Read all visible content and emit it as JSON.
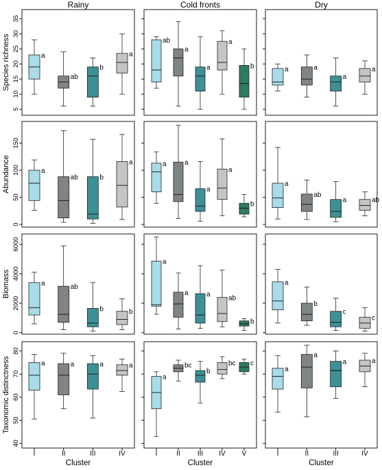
{
  "colors": {
    "I": "#a9dbe8",
    "II": "#7f8584",
    "III": "#3d9095",
    "IV": "#c5c5c5",
    "V": "#2e7d5e"
  },
  "chart_data": {
    "type": "box",
    "columns": [
      "Rainy",
      "Cold fronts",
      "Dry"
    ],
    "xlabel": "Cluster",
    "rows": [
      {
        "ylabel": "Species richness",
        "ylim": [
          3,
          38
        ],
        "yticks": [
          5,
          10,
          15,
          20,
          25,
          30,
          35
        ],
        "panels": [
          {
            "season": "Rainy",
            "groups": [
              {
                "cluster": "I",
                "min": 10,
                "q1": 15,
                "median": 19,
                "q3": 23,
                "max": 28,
                "letter": "a"
              },
              {
                "cluster": "II",
                "min": 6,
                "q1": 12,
                "median": 14,
                "q3": 16,
                "max": 24,
                "letter": "ab"
              },
              {
                "cluster": "III",
                "min": 6,
                "q1": 9,
                "median": 16,
                "q3": 19,
                "max": 22,
                "letter": "b"
              },
              {
                "cluster": "IV",
                "min": 10,
                "q1": 17,
                "median": 20.5,
                "q3": 23.5,
                "max": 30,
                "letter": "a"
              }
            ]
          },
          {
            "season": "Cold fronts",
            "groups": [
              {
                "cluster": "I",
                "min": 12,
                "q1": 14,
                "median": 18,
                "q3": 28,
                "max": 29,
                "letter": "ab"
              },
              {
                "cluster": "II",
                "min": 6,
                "q1": 16,
                "median": 22,
                "q3": 25,
                "max": 34,
                "letter": "a"
              },
              {
                "cluster": "III",
                "min": 5,
                "q1": 11,
                "median": 16,
                "q3": 19,
                "max": 29,
                "letter": "a"
              },
              {
                "cluster": "IV",
                "min": 10,
                "q1": 18,
                "median": 20.5,
                "q3": 27.5,
                "max": 31,
                "letter": "a"
              },
              {
                "cluster": "V",
                "min": 5,
                "q1": 9,
                "median": 13.5,
                "q3": 19.5,
                "max": 25,
                "letter": "b"
              }
            ]
          },
          {
            "season": "Dry",
            "groups": [
              {
                "cluster": "I",
                "min": 11,
                "q1": 13,
                "median": 14,
                "q3": 18.5,
                "max": 20,
                "letter": "a"
              },
              {
                "cluster": "II",
                "min": 9,
                "q1": 13,
                "median": 15,
                "q3": 19,
                "max": 23,
                "letter": "a"
              },
              {
                "cluster": "III",
                "min": 6,
                "q1": 11,
                "median": 14,
                "q3": 16,
                "max": 22,
                "letter": "a"
              },
              {
                "cluster": "IV",
                "min": 10,
                "q1": 14,
                "median": 16,
                "q3": 18.5,
                "max": 21,
                "letter": "a"
              }
            ]
          }
        ]
      },
      {
        "ylabel": "Abundance",
        "ylim": [
          -5,
          190
        ],
        "yticks": [
          0,
          50,
          100,
          150
        ],
        "panels": [
          {
            "season": "Rainy",
            "groups": [
              {
                "cluster": "I",
                "min": 26,
                "q1": 44,
                "median": 76,
                "q3": 100,
                "max": 119,
                "letter": "a"
              },
              {
                "cluster": "II",
                "min": 4,
                "q1": 12,
                "median": 44,
                "q3": 88,
                "max": 173,
                "letter": "ab"
              },
              {
                "cluster": "III",
                "min": 2,
                "q1": 10,
                "median": 19,
                "q3": 88,
                "max": 157,
                "letter": "b"
              },
              {
                "cluster": "IV",
                "min": 9,
                "q1": 32,
                "median": 72,
                "q3": 116,
                "max": 166,
                "letter": "a"
              }
            ]
          },
          {
            "season": "Cold fronts",
            "groups": [
              {
                "cluster": "I",
                "min": 39,
                "q1": 60,
                "median": 97,
                "q3": 113,
                "max": 134,
                "letter": "a"
              },
              {
                "cluster": "II",
                "min": 11,
                "q1": 42,
                "median": 55,
                "q3": 115,
                "max": 183,
                "letter": "a"
              },
              {
                "cluster": "III",
                "min": 6,
                "q1": 24,
                "median": 34,
                "q3": 66,
                "max": 116,
                "letter": "a"
              },
              {
                "cluster": "IV",
                "min": 16,
                "q1": 46,
                "median": 67,
                "q3": 102,
                "max": 158,
                "letter": "a"
              },
              {
                "cluster": "V",
                "min": 14,
                "q1": 19,
                "median": 30,
                "q3": 39,
                "max": 55,
                "letter": "b"
              }
            ]
          },
          {
            "season": "Dry",
            "groups": [
              {
                "cluster": "I",
                "min": 10,
                "q1": 31,
                "median": 49,
                "q3": 76,
                "max": 142,
                "letter": "a"
              },
              {
                "cluster": "II",
                "min": 9,
                "q1": 24,
                "median": 37,
                "q3": 56,
                "max": 82,
                "letter": "ab"
              },
              {
                "cluster": "III",
                "min": 5,
                "q1": 13,
                "median": 24,
                "q3": 46,
                "max": 79,
                "letter": "a"
              },
              {
                "cluster": "IV",
                "min": 16,
                "q1": 26,
                "median": 35,
                "q3": 46,
                "max": 60,
                "letter": "ab"
              }
            ]
          }
        ]
      },
      {
        "ylabel": "Biomass",
        "ylim": [
          -100,
          6700
        ],
        "yticks": [
          0,
          2000,
          4000,
          6000
        ],
        "panels": [
          {
            "season": "Rainy",
            "groups": [
              {
                "cluster": "I",
                "min": 600,
                "q1": 1200,
                "median": 1700,
                "q3": 3400,
                "max": 4100,
                "letter": "a"
              },
              {
                "cluster": "II",
                "min": 200,
                "q1": 700,
                "median": 1250,
                "q3": 3150,
                "max": 5900,
                "letter": "ab"
              },
              {
                "cluster": "III",
                "min": 100,
                "q1": 400,
                "median": 650,
                "q3": 1650,
                "max": 3400,
                "letter": "b"
              },
              {
                "cluster": "IV",
                "min": 200,
                "q1": 550,
                "median": 900,
                "q3": 1450,
                "max": 2300,
                "letter": "b"
              }
            ]
          },
          {
            "season": "Cold fronts",
            "groups": [
              {
                "cluster": "I",
                "min": 1250,
                "q1": 1800,
                "median": 1900,
                "q3": 4850,
                "max": 6500,
                "letter": "a"
              },
              {
                "cluster": "II",
                "min": 250,
                "q1": 1050,
                "median": 1950,
                "q3": 2750,
                "max": 4050,
                "letter": "a"
              },
              {
                "cluster": "III",
                "min": 300,
                "q1": 650,
                "median": 1200,
                "q3": 2650,
                "max": 4550,
                "letter": "a"
              },
              {
                "cluster": "IV",
                "min": 400,
                "q1": 750,
                "median": 1300,
                "q3": 2400,
                "max": 4250,
                "letter": "ab"
              },
              {
                "cluster": "V",
                "min": 150,
                "q1": 450,
                "median": 600,
                "q3": 800,
                "max": 950,
                "letter": "b"
              }
            ]
          },
          {
            "season": "Dry",
            "groups": [
              {
                "cluster": "I",
                "min": 650,
                "q1": 1550,
                "median": 2150,
                "q3": 3450,
                "max": 4300,
                "letter": "a"
              },
              {
                "cluster": "II",
                "min": 500,
                "q1": 800,
                "median": 1250,
                "q3": 2000,
                "max": 3100,
                "letter": "b"
              },
              {
                "cluster": "III",
                "min": 150,
                "q1": 400,
                "median": 700,
                "q3": 1450,
                "max": 2350,
                "letter": "c"
              },
              {
                "cluster": "IV",
                "min": 100,
                "q1": 300,
                "median": 650,
                "q3": 1050,
                "max": 1700,
                "letter": "c"
              }
            ]
          }
        ]
      },
      {
        "ylabel": "Taxonomic distinctness",
        "ylim": [
          38,
          84
        ],
        "yticks": [
          40,
          50,
          60,
          70,
          80
        ],
        "panels": [
          {
            "season": "Rainy",
            "groups": [
              {
                "cluster": "I",
                "min": 50.5,
                "q1": 63,
                "median": 69.5,
                "q3": 75,
                "max": 78.5,
                "letter": "a"
              },
              {
                "cluster": "II",
                "min": 55,
                "q1": 61,
                "median": 69.5,
                "q3": 74.5,
                "max": 79,
                "letter": "a"
              },
              {
                "cluster": "III",
                "min": 51,
                "q1": 63.5,
                "median": 70,
                "q3": 74.5,
                "max": 78,
                "letter": "a"
              },
              {
                "cluster": "IV",
                "min": 62.5,
                "q1": 69.5,
                "median": 71.5,
                "q3": 74,
                "max": 76.5,
                "letter": "a"
              }
            ]
          },
          {
            "season": "Cold fronts",
            "groups": [
              {
                "cluster": "I",
                "min": 43,
                "q1": 55,
                "median": 62,
                "q3": 69,
                "max": 71,
                "letter": "a"
              },
              {
                "cluster": "II",
                "min": 67,
                "q1": 71,
                "median": 72.5,
                "q3": 74,
                "max": 76,
                "letter": "bc"
              },
              {
                "cluster": "III",
                "min": 57.5,
                "q1": 66.5,
                "median": 69.5,
                "q3": 71.5,
                "max": 75.5,
                "letter": "b"
              },
              {
                "cluster": "IV",
                "min": 68,
                "q1": 70,
                "median": 72,
                "q3": 75,
                "max": 77.5,
                "letter": "bc"
              },
              {
                "cluster": "V",
                "min": 70,
                "q1": 71,
                "median": 73,
                "q3": 75,
                "max": 76.5,
                "letter": "c"
              }
            ]
          },
          {
            "season": "Dry",
            "groups": [
              {
                "cluster": "I",
                "min": 53.5,
                "q1": 63.5,
                "median": 69,
                "q3": 72.5,
                "max": 78,
                "letter": "a"
              },
              {
                "cluster": "II",
                "min": 51.5,
                "q1": 64,
                "median": 73,
                "q3": 78.5,
                "max": 82.5,
                "letter": "a"
              },
              {
                "cluster": "III",
                "min": 59.5,
                "q1": 64.5,
                "median": 71.5,
                "q3": 75.5,
                "max": 80,
                "letter": "a"
              },
              {
                "cluster": "IV",
                "min": 64.5,
                "q1": 71,
                "median": 73.5,
                "q3": 76,
                "max": 79,
                "letter": "a"
              }
            ]
          }
        ]
      }
    ]
  }
}
